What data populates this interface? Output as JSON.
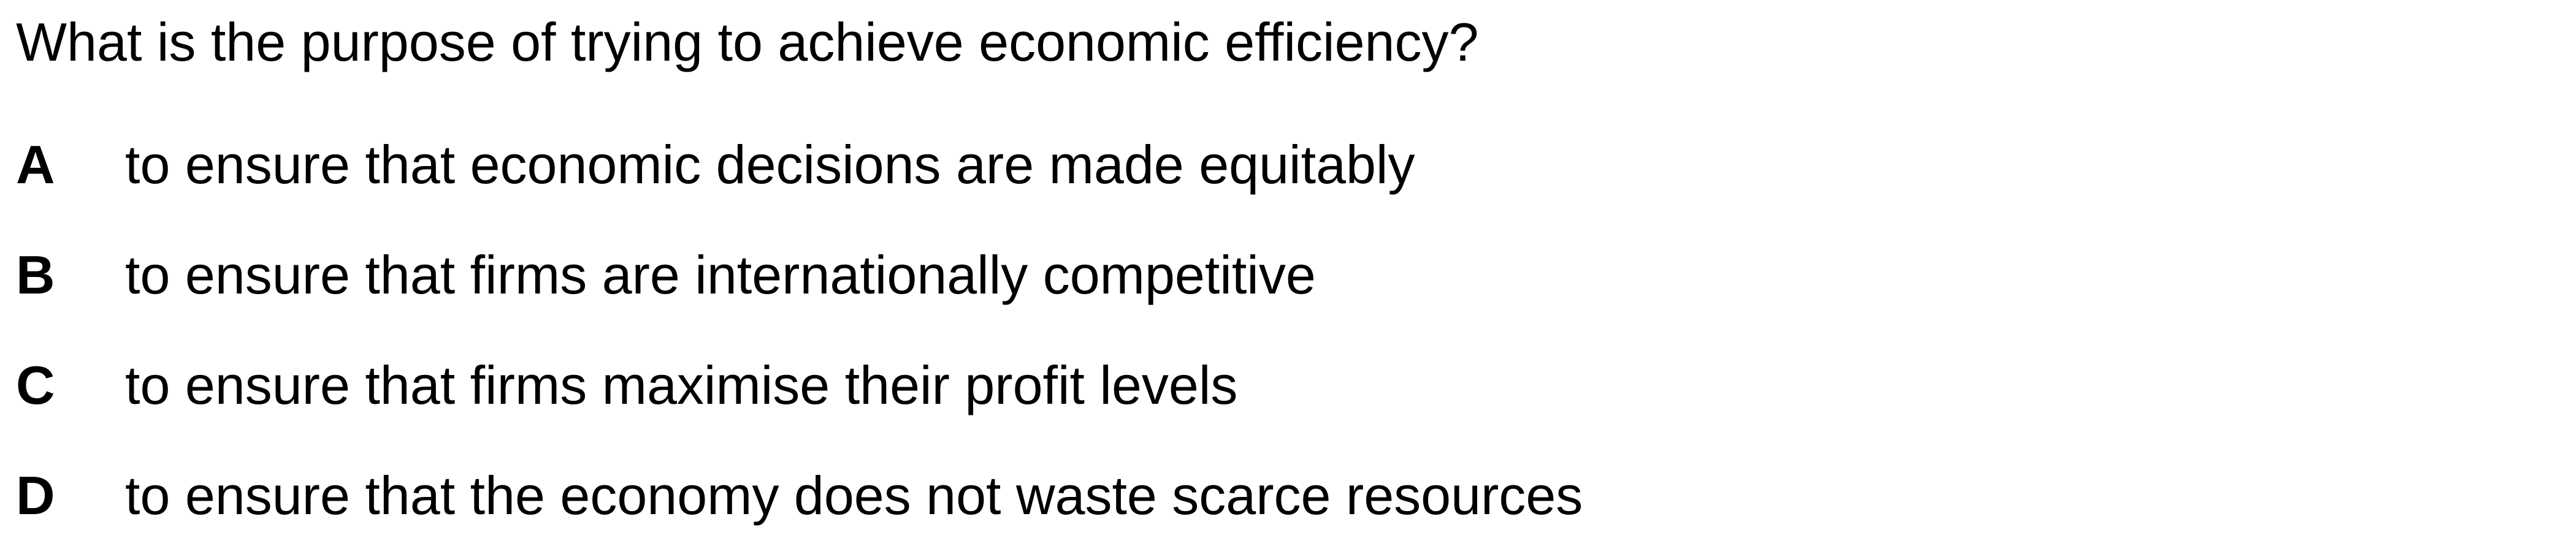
{
  "question": "What is the purpose of trying to achieve economic efficiency?",
  "options": [
    {
      "letter": "A",
      "text": "to ensure that economic decisions are made equitably"
    },
    {
      "letter": "B",
      "text": "to ensure that firms are internationally competitive"
    },
    {
      "letter": "C",
      "text": "to ensure that firms maximise their profit levels"
    },
    {
      "letter": "D",
      "text": "to ensure that the economy does not waste scarce resources"
    }
  ]
}
